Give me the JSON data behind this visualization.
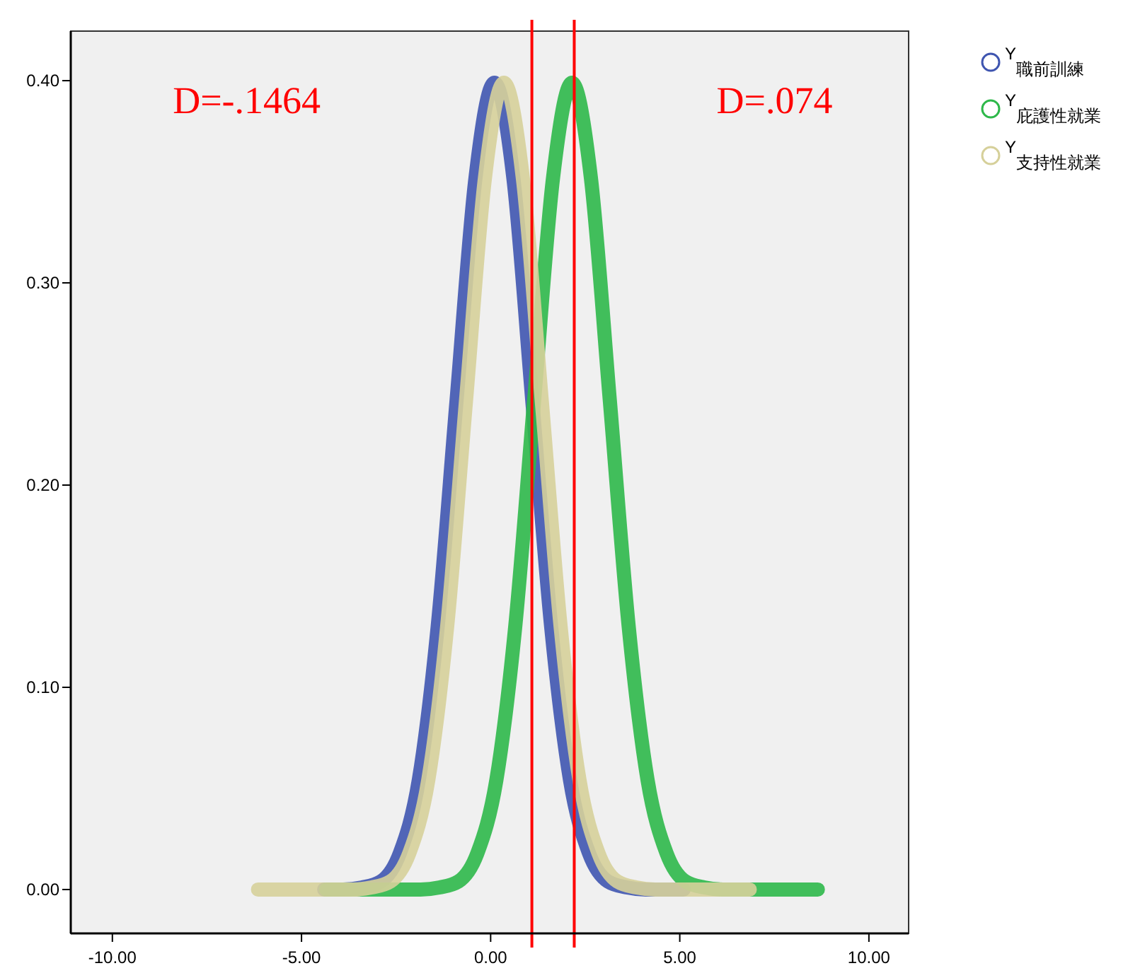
{
  "chart_data": {
    "type": "line",
    "legend": "top right",
    "grid": false,
    "xlim": [
      -11.1,
      11.05
    ],
    "ylim": [
      -0.0217,
      0.4245
    ],
    "xticks": [
      {
        "value": -10,
        "label": "-10.00"
      },
      {
        "value": -5,
        "label": "-5.00"
      },
      {
        "value": 0,
        "label": "0.00"
      },
      {
        "value": 5,
        "label": "5.00"
      },
      {
        "value": 10,
        "label": "10.00"
      }
    ],
    "yticks": [
      {
        "value": 0,
        "label": "0.00"
      },
      {
        "value": 0.1,
        "label": "0.10"
      },
      {
        "value": 0.2,
        "label": "0.20"
      },
      {
        "value": 0.3,
        "label": "0.30"
      },
      {
        "value": 0.4,
        "label": "0.40"
      }
    ],
    "series": [
      {
        "name": "Y$_{職前訓練}$",
        "color": "#3f55b0",
        "x": [
          -4.4,
          -3.9,
          -3.4,
          -2.9,
          -2.4,
          -1.9,
          -1.4,
          -0.9,
          -0.4,
          0.1,
          0.6,
          1.1,
          1.6,
          2.1,
          2.6,
          3.1,
          3.6,
          4.1,
          4.6,
          5.1
        ],
        "values": [
          0,
          0,
          0.001,
          0.004,
          0.018,
          0.054,
          0.13,
          0.242,
          0.352,
          0.399,
          0.352,
          0.242,
          0.13,
          0.054,
          0.018,
          0.004,
          0.001,
          0,
          0,
          0
        ]
      },
      {
        "name": "Y$_{庇護性就業}$",
        "color": "#2eb84a",
        "x": [
          -4.35,
          -3.85,
          -3.35,
          -2.85,
          -2.35,
          -1.85,
          -1.35,
          -0.85,
          -0.35,
          0.15,
          0.65,
          1.15,
          1.65,
          2.15,
          2.65,
          3.15,
          3.65,
          4.15,
          4.65,
          5.15,
          5.65,
          6.15,
          6.65,
          7.15,
          7.65,
          8.15,
          8.65
        ],
        "values": [
          0,
          0,
          0,
          0,
          0,
          0,
          0.001,
          0.004,
          0.018,
          0.054,
          0.13,
          0.242,
          0.352,
          0.399,
          0.352,
          0.242,
          0.13,
          0.054,
          0.018,
          0.004,
          0.001,
          0,
          0,
          0,
          0,
          0,
          0
        ]
      },
      {
        "name": "Y$_{支持性就業}$",
        "color": "#d6d09a",
        "x": [
          -6.15,
          -5.65,
          -5.15,
          -4.65,
          -4.15,
          -3.65,
          -3.15,
          -2.65,
          -2.15,
          -1.65,
          -1.15,
          -0.65,
          -0.15,
          0.35,
          0.85,
          1.35,
          1.85,
          2.35,
          2.85,
          3.35,
          3.85,
          4.35,
          4.85,
          5.35,
          5.85,
          6.35,
          6.85
        ],
        "values": [
          0,
          0,
          0,
          0,
          0,
          0,
          0.001,
          0.004,
          0.018,
          0.054,
          0.13,
          0.242,
          0.352,
          0.399,
          0.352,
          0.242,
          0.13,
          0.054,
          0.018,
          0.004,
          0.001,
          0,
          0,
          0,
          0,
          0,
          0
        ]
      }
    ],
    "ref_lines": [
      {
        "axis": "x",
        "value": 1.09,
        "color": "#ff0000"
      },
      {
        "axis": "x",
        "value": 2.21,
        "color": "#ff0000"
      }
    ],
    "annotations": [
      "D=-.1464",
      "D=.074"
    ]
  }
}
